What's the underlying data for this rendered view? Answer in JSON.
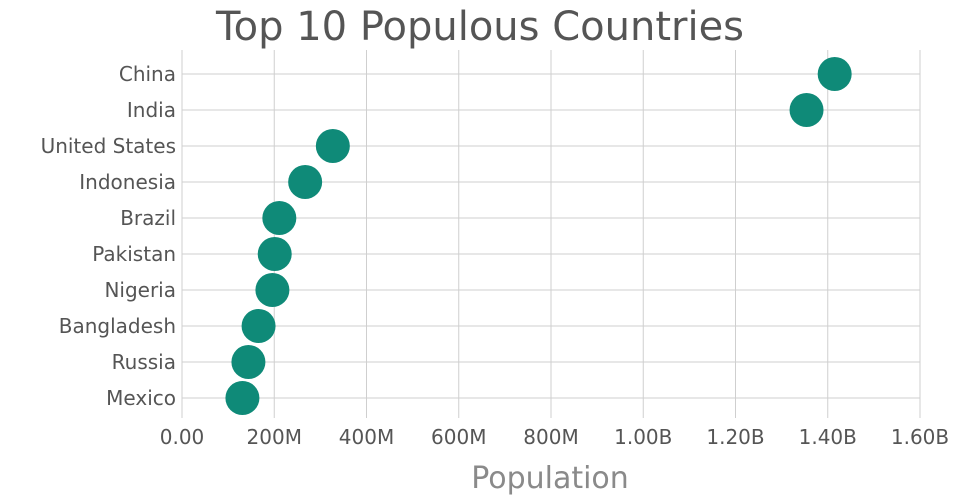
{
  "chart_data": {
    "type": "scatter",
    "title": "Top 10 Populous Countries",
    "xlabel": "Population",
    "ylabel": "",
    "xlim": [
      0,
      1600000000
    ],
    "x_ticks": [
      0,
      200000000,
      400000000,
      600000000,
      800000000,
      1000000000,
      1200000000,
      1400000000,
      1600000000
    ],
    "x_tick_labels": [
      "0.00",
      "200M",
      "400M",
      "600M",
      "800M",
      "1.00B",
      "1.20B",
      "1.40B",
      "1.60B"
    ],
    "categories": [
      "China",
      "India",
      "United States",
      "Indonesia",
      "Brazil",
      "Pakistan",
      "Nigeria",
      "Bangladesh",
      "Russia",
      "Mexico"
    ],
    "values": [
      1415000000,
      1354000000,
      327000000,
      267000000,
      211000000,
      201000000,
      196000000,
      166000000,
      144000000,
      131000000
    ],
    "grid": true,
    "marker_color": "#0f8a78"
  }
}
